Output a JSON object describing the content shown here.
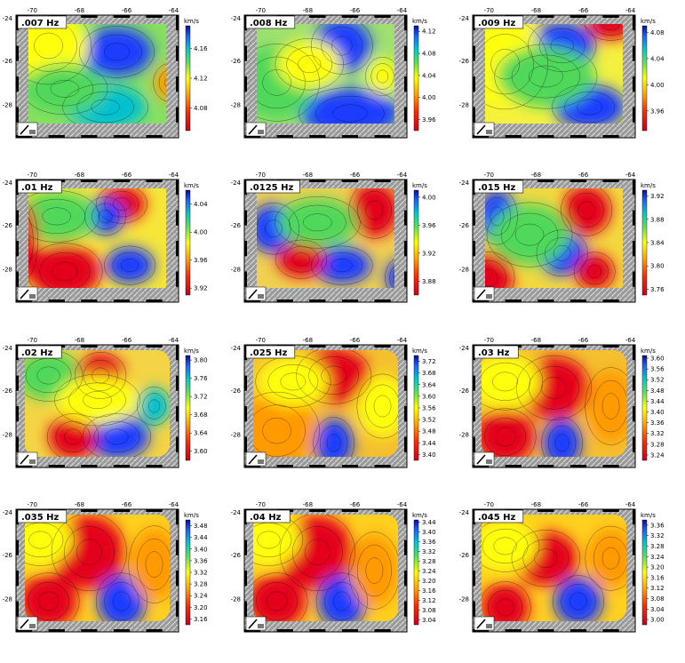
{
  "figure": {
    "x_ticks": [
      "-70",
      "-68",
      "-66",
      "-64"
    ],
    "y_ticks": [
      "-24",
      "-26",
      "-28"
    ],
    "unit": "km/s"
  },
  "chart_data": [
    {
      "type": "heatmap",
      "panel_label": ".007  Hz",
      "colorbar_ticks": [
        "4.16",
        "4.12",
        "4.08"
      ],
      "colorbar_range": [
        4.05,
        4.19
      ],
      "x": [
        "-70",
        "-68",
        "-66",
        "-64"
      ],
      "y": [
        "-24",
        "-26",
        "-28"
      ]
    },
    {
      "type": "heatmap",
      "panel_label": ".008  Hz",
      "colorbar_ticks": [
        "4.12",
        "4.08",
        "4.04",
        "4.00",
        "3.96"
      ],
      "colorbar_range": [
        3.94,
        4.13
      ],
      "x": [
        "-70",
        "-68",
        "-66",
        "-64"
      ],
      "y": [
        "-24",
        "-26",
        "-28"
      ]
    },
    {
      "type": "heatmap",
      "panel_label": ".009  Hz",
      "colorbar_ticks": [
        "4.08",
        "4.04",
        "4.00",
        "3.96"
      ],
      "colorbar_range": [
        3.93,
        4.09
      ],
      "x": [
        "-70",
        "-68",
        "-66",
        "-64"
      ],
      "y": [
        "-24",
        "-26",
        "-28"
      ]
    },
    {
      "type": "heatmap",
      "panel_label": ".01  Hz",
      "colorbar_ticks": [
        "4.04",
        "4.00",
        "3.96",
        "3.92"
      ],
      "colorbar_range": [
        3.91,
        4.06
      ],
      "x": [
        "-70",
        "-68",
        "-66",
        "-64"
      ],
      "y": [
        "-24",
        "-26",
        "-28"
      ]
    },
    {
      "type": "heatmap",
      "panel_label": ".0125  Hz",
      "colorbar_ticks": [
        "4.00",
        "3.96",
        "3.92",
        "3.88"
      ],
      "colorbar_range": [
        3.86,
        4.01
      ],
      "x": [
        "-70",
        "-68",
        "-66",
        "-64"
      ],
      "y": [
        "-24",
        "-26",
        "-28"
      ]
    },
    {
      "type": "heatmap",
      "panel_label": ".015  Hz",
      "colorbar_ticks": [
        "3.92",
        "3.88",
        "3.84",
        "3.80",
        "3.76"
      ],
      "colorbar_range": [
        3.75,
        3.93
      ],
      "x": [
        "-70",
        "-68",
        "-66",
        "-64"
      ],
      "y": [
        "-24",
        "-26",
        "-28"
      ]
    },
    {
      "type": "heatmap",
      "panel_label": ".02  Hz",
      "colorbar_ticks": [
        "3.80",
        "3.76",
        "3.72",
        "3.68",
        "3.64",
        "3.60"
      ],
      "colorbar_range": [
        3.58,
        3.81
      ],
      "x": [
        "-70",
        "-68",
        "-66",
        "-64"
      ],
      "y": [
        "-24",
        "-26",
        "-28"
      ]
    },
    {
      "type": "heatmap",
      "panel_label": ".025  Hz",
      "colorbar_ticks": [
        "3.72",
        "3.68",
        "3.64",
        "3.60",
        "3.56",
        "3.52",
        "3.48",
        "3.44",
        "3.40"
      ],
      "colorbar_range": [
        3.38,
        3.74
      ],
      "x": [
        "-70",
        "-68",
        "-66",
        "-64"
      ],
      "y": [
        "-24",
        "-26",
        "-28"
      ]
    },
    {
      "type": "heatmap",
      "panel_label": ".03  Hz",
      "colorbar_ticks": [
        "3.60",
        "3.56",
        "3.52",
        "3.48",
        "3.44",
        "3.40",
        "3.36",
        "3.32",
        "3.28",
        "3.24"
      ],
      "colorbar_range": [
        3.22,
        3.61
      ],
      "x": [
        "-70",
        "-68",
        "-66",
        "-64"
      ],
      "y": [
        "-24",
        "-26",
        "-28"
      ]
    },
    {
      "type": "heatmap",
      "panel_label": ".035  Hz",
      "colorbar_ticks": [
        "3.48",
        "3.44",
        "3.40",
        "3.36",
        "3.32",
        "3.28",
        "3.24",
        "3.20",
        "3.16"
      ],
      "colorbar_range": [
        3.14,
        3.5
      ],
      "x": [
        "-70",
        "-68",
        "-66",
        "-64"
      ],
      "y": [
        "-24",
        "-26",
        "-28"
      ]
    },
    {
      "type": "heatmap",
      "panel_label": ".04  Hz",
      "colorbar_ticks": [
        "3.44",
        "3.40",
        "3.36",
        "3.32",
        "3.28",
        "3.24",
        "3.20",
        "3.16",
        "3.12",
        "3.08",
        "3.04"
      ],
      "colorbar_range": [
        3.02,
        3.45
      ],
      "x": [
        "-70",
        "-68",
        "-66",
        "-64"
      ],
      "y": [
        "-24",
        "-26",
        "-28"
      ]
    },
    {
      "type": "heatmap",
      "panel_label": ".045  Hz",
      "colorbar_ticks": [
        "3.36",
        "3.32",
        "3.28",
        "3.24",
        "3.20",
        "3.16",
        "3.12",
        "3.08",
        "3.04",
        "3.00"
      ],
      "colorbar_range": [
        2.98,
        3.38
      ],
      "x": [
        "-70",
        "-68",
        "-66",
        "-64"
      ],
      "y": [
        "-24",
        "-26",
        "-28"
      ]
    }
  ]
}
